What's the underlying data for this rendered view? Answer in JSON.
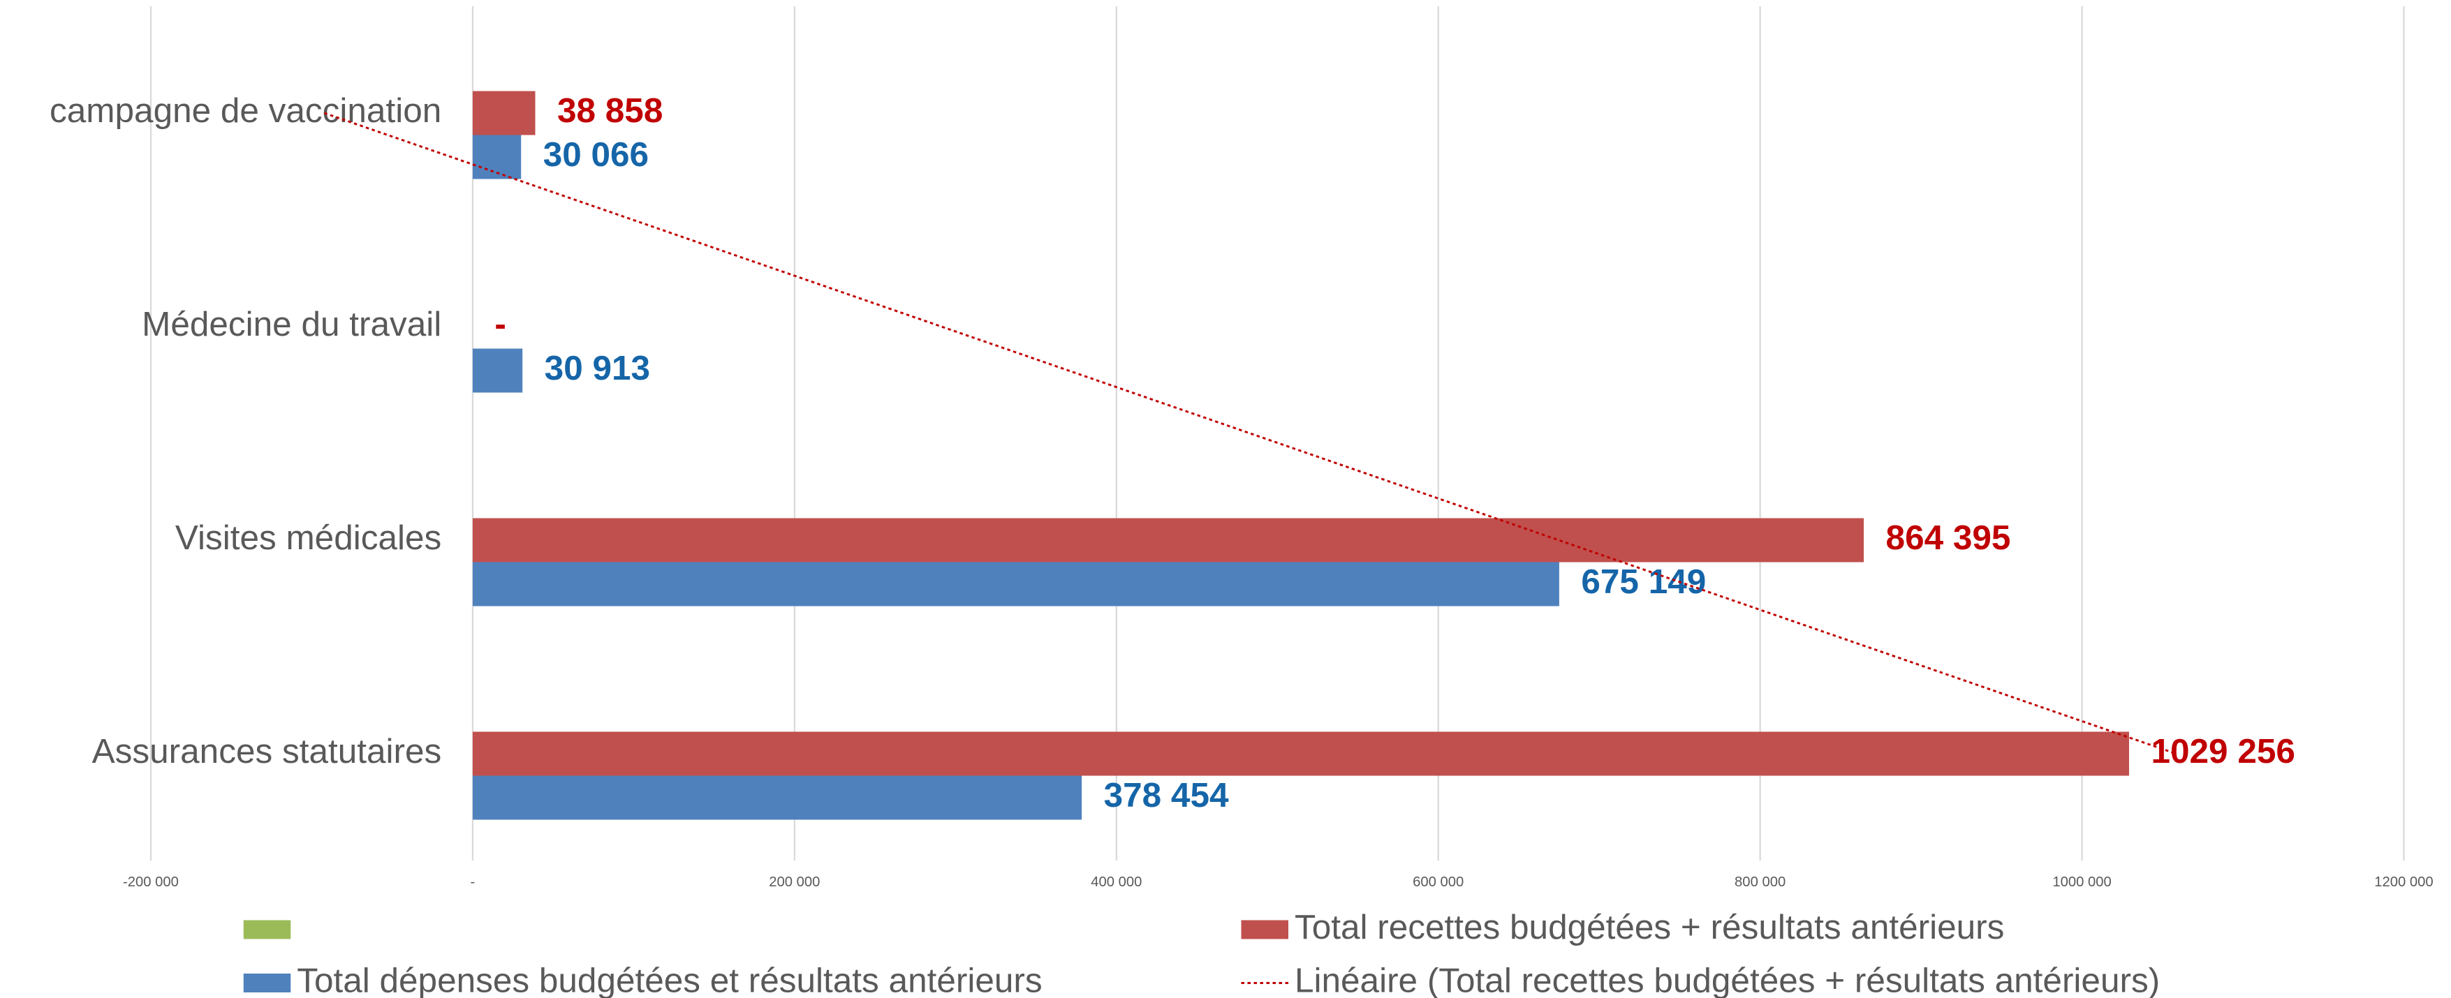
{
  "chart_data": {
    "type": "bar",
    "orientation": "horizontal",
    "categories": [
      "campagne de vaccination",
      "Médecine du travail",
      "Visites médicales",
      "Assurances statutaires"
    ],
    "series": [
      {
        "color": "#9bbb59",
        "values": [
          null,
          null,
          null,
          null
        ]
      },
      {
        "name": "Total recettes budgétées + résultats antérieurs",
        "color": "#c0504d",
        "label_color": "#c00000",
        "values": [
          38858,
          0,
          864395,
          1029256
        ],
        "value_labels": [
          "38 858",
          "-",
          "864 395",
          "1029 256"
        ]
      },
      {
        "name": "Total dépenses budgétées et résultats antérieurs",
        "color": "#4f81bd",
        "label_color": "#1565a8",
        "values": [
          30066,
          30913,
          675149,
          378454
        ],
        "value_labels": [
          "30 066",
          "30 913",
          "675 149",
          "378 454"
        ]
      }
    ],
    "trendline": {
      "name": "Linéaire (Total recettes budgétées + résultats antérieurs)",
      "series": 1,
      "kind": "linear",
      "color": "#c00000"
    },
    "xlim": [
      -200000,
      1200000
    ],
    "xticks": [
      {
        "value": -200000,
        "label": "-200 000"
      },
      {
        "value": 0,
        "label": "-"
      },
      {
        "value": 200000,
        "label": "200 000"
      },
      {
        "value": 400000,
        "label": "400 000"
      },
      {
        "value": 600000,
        "label": "600 000"
      },
      {
        "value": 800000,
        "label": "800 000"
      },
      {
        "value": 1000000,
        "label": "1000 000"
      },
      {
        "value": 1200000,
        "label": "1200 000"
      }
    ],
    "grid": true,
    "legend": "bottom"
  }
}
